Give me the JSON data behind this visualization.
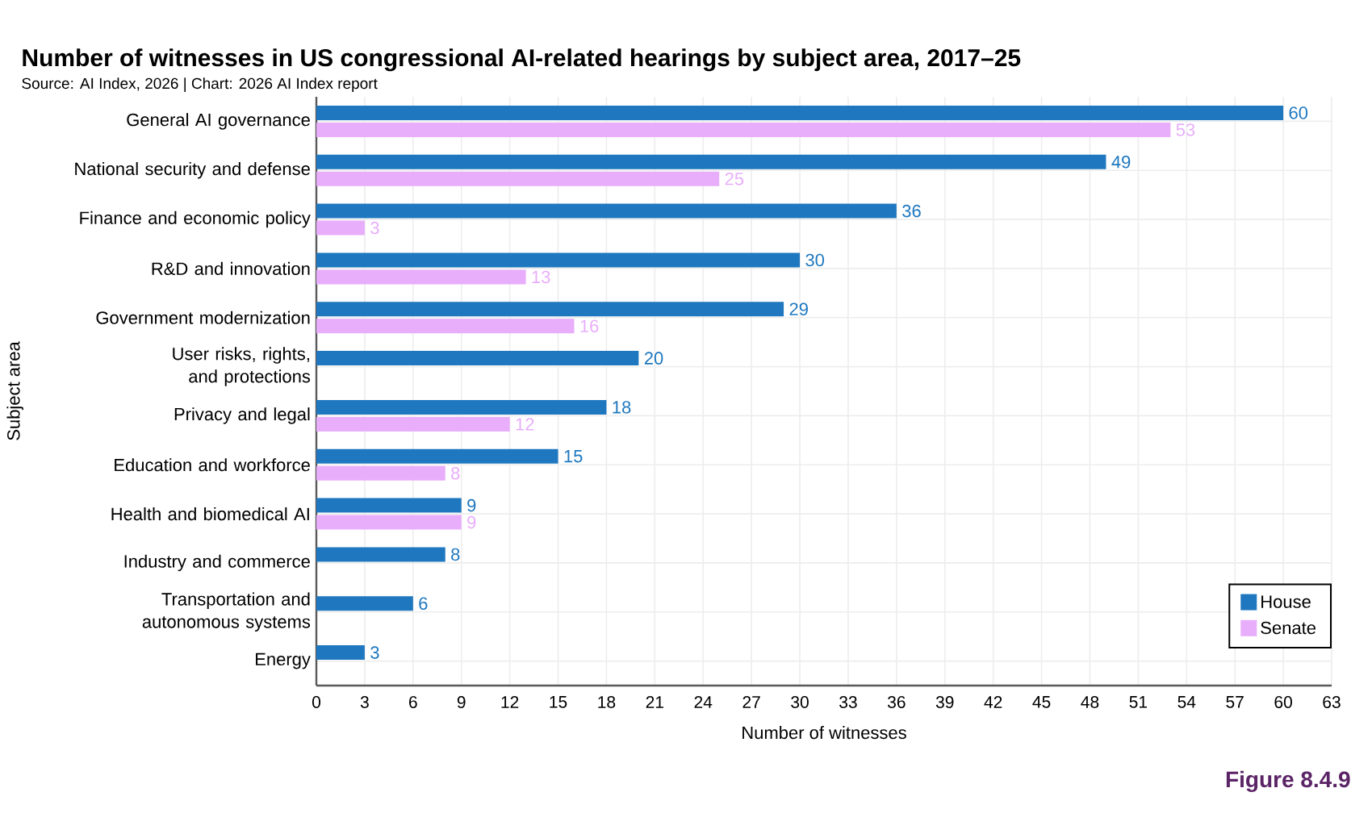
{
  "chart_data": {
    "type": "bar",
    "orientation": "horizontal",
    "title": "Number of witnesses in US congressional AI-related hearings by subject area, 2017–25",
    "annotations": [
      "Source: AI Index, 2026 | Chart: 2026 AI Index report",
      "Figure 8.4.9"
    ],
    "xlabel": "Number of witnesses",
    "ylabel": "Subject area",
    "categories": [
      "General AI governance",
      "National security and defense",
      "Finance and economic policy",
      "R&D and innovation",
      "Government modernization",
      "User risks, rights, and protections",
      "Privacy and legal",
      "Education and workforce",
      "Health and biomedical AI",
      "Industry and commerce",
      "Transportation and autonomous systems",
      "Energy"
    ],
    "series": [
      {
        "name": "House",
        "color": "#1f78bf",
        "values": [
          60,
          49,
          36,
          30,
          29,
          20,
          18,
          15,
          9,
          8,
          6,
          3
        ]
      },
      {
        "name": "Senate",
        "color": "#e8adfb",
        "values": [
          53,
          25,
          3,
          13,
          16,
          null,
          12,
          8,
          9,
          null,
          null,
          null
        ]
      }
    ],
    "xlim": [
      0,
      63
    ],
    "xticks": [
      0,
      3,
      6,
      9,
      12,
      15,
      18,
      21,
      24,
      27,
      30,
      33,
      36,
      39,
      42,
      45,
      48,
      51,
      54,
      57,
      60,
      63
    ],
    "grid": true,
    "legend": "bottom right",
    "data_labels": true
  }
}
